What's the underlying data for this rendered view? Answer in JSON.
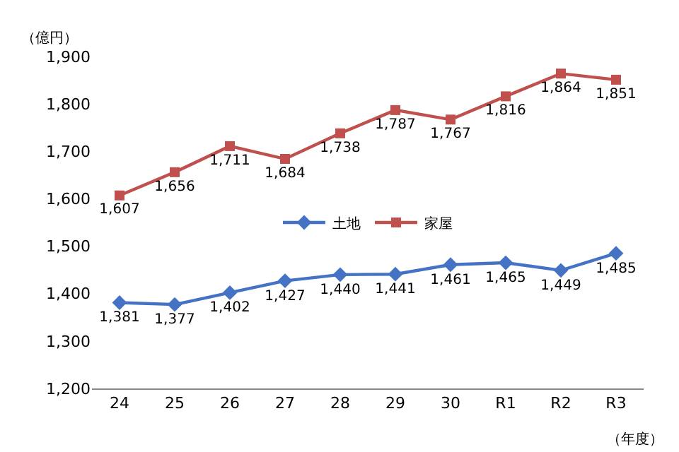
{
  "chart_data": {
    "type": "line",
    "ylabel": "（億円）",
    "xlabel": "（年度）",
    "categories": [
      "24",
      "25",
      "26",
      "27",
      "28",
      "29",
      "30",
      "R1",
      "R2",
      "R3"
    ],
    "series": [
      {
        "name": "土地",
        "color": "#4472c4",
        "marker": "diamond",
        "values": [
          1381,
          1377,
          1402,
          1427,
          1440,
          1441,
          1461,
          1465,
          1449,
          1485
        ],
        "value_labels": [
          "1,381",
          "1,377",
          "1,402",
          "1,427",
          "1,440",
          "1,441",
          "1,461",
          "1,465",
          "1,449",
          "1,485"
        ]
      },
      {
        "name": "家屋",
        "color": "#c0504d",
        "marker": "square",
        "values": [
          1607,
          1656,
          1711,
          1684,
          1738,
          1787,
          1767,
          1816,
          1864,
          1851
        ],
        "value_labels": [
          "1,607",
          "1,656",
          "1,711",
          "1,684",
          "1,738",
          "1,787",
          "1,767",
          "1,816",
          "1,864",
          "1,851"
        ]
      }
    ],
    "ylim": [
      1200,
      1900
    ],
    "yticks": [
      {
        "value": 1200,
        "label": "1,200"
      },
      {
        "value": 1300,
        "label": "1,300"
      },
      {
        "value": 1400,
        "label": "1,400"
      },
      {
        "value": 1500,
        "label": "1,500"
      },
      {
        "value": 1600,
        "label": "1,600"
      },
      {
        "value": 1700,
        "label": "1,700"
      },
      {
        "value": 1800,
        "label": "1,800"
      },
      {
        "value": 1900,
        "label": "1,900"
      }
    ],
    "grid": false,
    "legend": "center",
    "line_style": "solid"
  }
}
